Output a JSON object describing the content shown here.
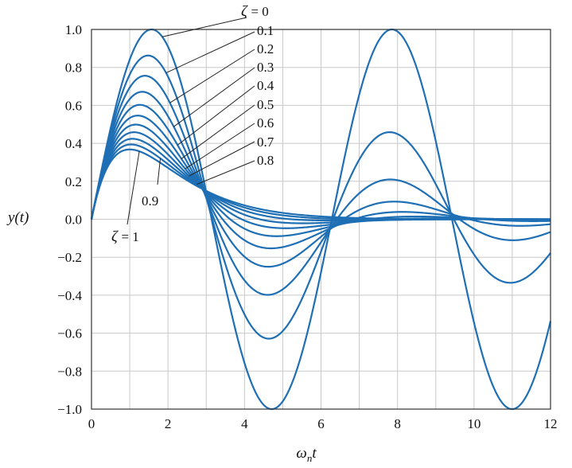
{
  "chart_data": {
    "type": "line",
    "title": "",
    "xlabel": "ω",
    "xlabel_sub": "n",
    "xlabel_var": "t",
    "ylabel": "y(t)",
    "xlim": [
      0,
      12
    ],
    "ylim": [
      -1.0,
      1.0
    ],
    "x_ticks": [
      "0",
      "2",
      "4",
      "6",
      "8",
      "10",
      "12"
    ],
    "y_ticks": [
      "1.0",
      "0.8",
      "0.6",
      "0.4",
      "0.2",
      "0.0",
      "−0.2",
      "−0.4",
      "−0.6",
      "−0.8",
      "−1.0"
    ],
    "grid": true,
    "line_color": "#1f6fb5",
    "annotation_symbol": "ζ",
    "series": [
      {
        "name": "0",
        "zeta": 0.0,
        "label": "= 0"
      },
      {
        "name": "0.1",
        "zeta": 0.1,
        "label": "0.1"
      },
      {
        "name": "0.2",
        "zeta": 0.2,
        "label": "0.2"
      },
      {
        "name": "0.3",
        "zeta": 0.3,
        "label": "0.3"
      },
      {
        "name": "0.4",
        "zeta": 0.4,
        "label": "0.4"
      },
      {
        "name": "0.5",
        "zeta": 0.5,
        "label": "0.5"
      },
      {
        "name": "0.6",
        "zeta": 0.6,
        "label": "0.6"
      },
      {
        "name": "0.7",
        "zeta": 0.7,
        "label": "0.7"
      },
      {
        "name": "0.8",
        "zeta": 0.8,
        "label": "0.8"
      },
      {
        "name": "0.9",
        "zeta": 0.9,
        "label": "0.9"
      },
      {
        "name": "1",
        "zeta": 1.0,
        "label": "= 1"
      }
    ]
  }
}
